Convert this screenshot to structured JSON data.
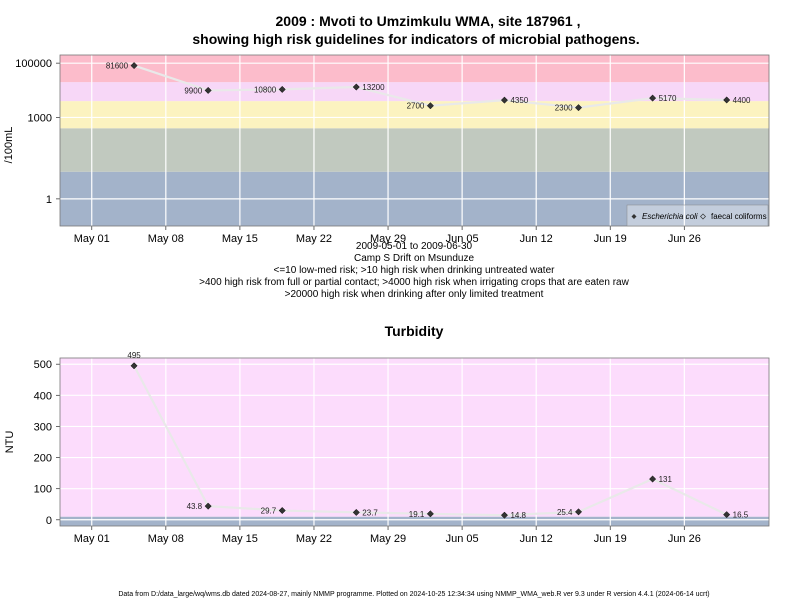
{
  "chart_data": [
    {
      "type": "scatter",
      "title": "2009 : Mvoti to Umzimkulu WMA, site 187961 ,",
      "subtitle": "showing high risk guidelines for indicators of microbial pathogens.",
      "ylabel": "/100mL",
      "yscale": "log",
      "yticks": [
        "1",
        "1000",
        "100000"
      ],
      "xticks": [
        "May 01",
        "May 08",
        "May 15",
        "May 22",
        "May 29",
        "Jun 05",
        "Jun 12",
        "Jun 19",
        "Jun 26"
      ],
      "notes": [
        "2009-05-01 to 2009-06-30",
        "Camp S Drift on Msunduze",
        "<=10 low-med risk; >10 high risk when drinking untreated water",
        ">400 high risk from full or partial contact; >4000 high risk when irrigating crops that are eaten raw",
        ">20000 high risk when drinking after only limited treatment"
      ],
      "legend": {
        "position": "bottom-right",
        "entries": [
          "Escherichia coli",
          "faecal coliforms"
        ]
      },
      "bands": [
        {
          "from": 0.1,
          "to": 10,
          "color": "#a3b3ca"
        },
        {
          "from": 10,
          "to": 400,
          "color": "#c1c9bf"
        },
        {
          "from": 400,
          "to": 4000,
          "color": "#fcf3c0"
        },
        {
          "from": 4000,
          "to": 20000,
          "color": "#f7d7f7"
        },
        {
          "from": 20000,
          "to": 200000,
          "color": "#fcbccb"
        }
      ],
      "series": [
        {
          "name": "Escherichia coli",
          "points": [
            {
              "x": "2009-05-05",
              "y": 81600,
              "label": "81600"
            },
            {
              "x": "2009-05-12",
              "y": 9900,
              "label": "9900"
            },
            {
              "x": "2009-05-19",
              "y": 10800,
              "label": "10800"
            },
            {
              "x": "2009-05-26",
              "y": 13200,
              "label": "13200"
            },
            {
              "x": "2009-06-02",
              "y": 2700,
              "label": "2700"
            },
            {
              "x": "2009-06-09",
              "y": 4350,
              "label": "4350"
            },
            {
              "x": "2009-06-16",
              "y": 2300,
              "label": "2300"
            },
            {
              "x": "2009-06-23",
              "y": 5170,
              "label": "5170"
            },
            {
              "x": "2009-06-30",
              "y": 4400,
              "label": "4400"
            }
          ]
        }
      ]
    },
    {
      "type": "scatter",
      "title": "Turbidity",
      "ylabel": "NTU",
      "ylim": [
        -20,
        520
      ],
      "yticks": [
        0,
        100,
        200,
        300,
        400,
        500
      ],
      "xticks": [
        "May 01",
        "May 08",
        "May 15",
        "May 22",
        "May 29",
        "Jun 05",
        "Jun 12",
        "Jun 19",
        "Jun 26"
      ],
      "bands": [
        {
          "from": -20,
          "to": 10,
          "color": "#a3b3ca"
        },
        {
          "from": 10,
          "to": 520,
          "color": "#fcdcfc"
        }
      ],
      "series": [
        {
          "points": [
            {
              "x": "2009-05-05",
              "y": 495,
              "label": "495"
            },
            {
              "x": "2009-05-12",
              "y": 43.8,
              "label": "43.8"
            },
            {
              "x": "2009-05-19",
              "y": 29.7,
              "label": "29.7"
            },
            {
              "x": "2009-05-26",
              "y": 23.7,
              "label": "23.7"
            },
            {
              "x": "2009-06-02",
              "y": 19.1,
              "label": "19.1"
            },
            {
              "x": "2009-06-09",
              "y": 14.8,
              "label": "14.8"
            },
            {
              "x": "2009-06-16",
              "y": 25.4,
              "label": "25.4"
            },
            {
              "x": "2009-06-23",
              "y": 131,
              "label": "131"
            },
            {
              "x": "2009-06-30",
              "y": 16.5,
              "label": "16.5"
            }
          ]
        }
      ]
    }
  ],
  "footer": "Data from D:/data_large/wq/wms.db dated 2024-08-27, mainly NMMP programme. Plotted on 2024-10-25 12:34:34 using NMMP_WMA_web.R ver 9.3 under R version 4.4.1 (2024-06-14 ucrt)"
}
